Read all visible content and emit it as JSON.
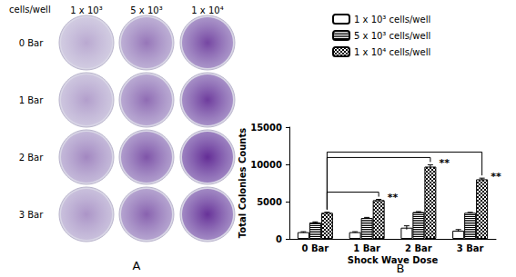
{
  "chart_data": {
    "type": "bar",
    "title": "B",
    "categories": [
      "0 Bar",
      "1 Bar",
      "2 Bar",
      "3 Bar"
    ],
    "series": [
      {
        "name": "1 x 10³ cells/well",
        "color": "#000000",
        "values": [
          900,
          900,
          1500,
          1100
        ],
        "errors": [
          60,
          60,
          250,
          150
        ]
      },
      {
        "name": "5 x 10³ cells/well",
        "color": "#000000",
        "values": [
          2200,
          2800,
          3600,
          3500
        ],
        "errors": [
          80,
          80,
          60,
          60
        ]
      },
      {
        "name": "1 x 10⁴ cells/well",
        "color": "#000000",
        "values": [
          3500,
          5200,
          9700,
          8000
        ],
        "errors": [
          80,
          100,
          250,
          150
        ]
      }
    ],
    "x_label": "Shock Wave Dose",
    "y_label": "Total Colonies Counts",
    "ylim": [
      0,
      15000
    ],
    "yticks": [
      0,
      5000,
      10000,
      15000
    ],
    "grid": false,
    "legend": "top",
    "annotations": [
      {
        "from": "0 Bar",
        "to": "1 Bar",
        "series": "1 x 10⁴ cells/well",
        "text": "**"
      },
      {
        "from": "0 Bar",
        "to": "2 Bar",
        "series": "1 x 10⁴ cells/well",
        "text": "**"
      },
      {
        "from": "0 Bar",
        "to": "3 Bar",
        "series": "1 x 10⁴ cells/well",
        "text": "**"
      }
    ]
  },
  "panel_a": {
    "title": "A",
    "header": "cells/well",
    "columns": [
      "1 x 10³",
      "5 x 10³",
      "1 x 10⁴"
    ],
    "rows": [
      "0 Bar",
      "1 Bar",
      "2 Bar",
      "3 Bar"
    ]
  }
}
